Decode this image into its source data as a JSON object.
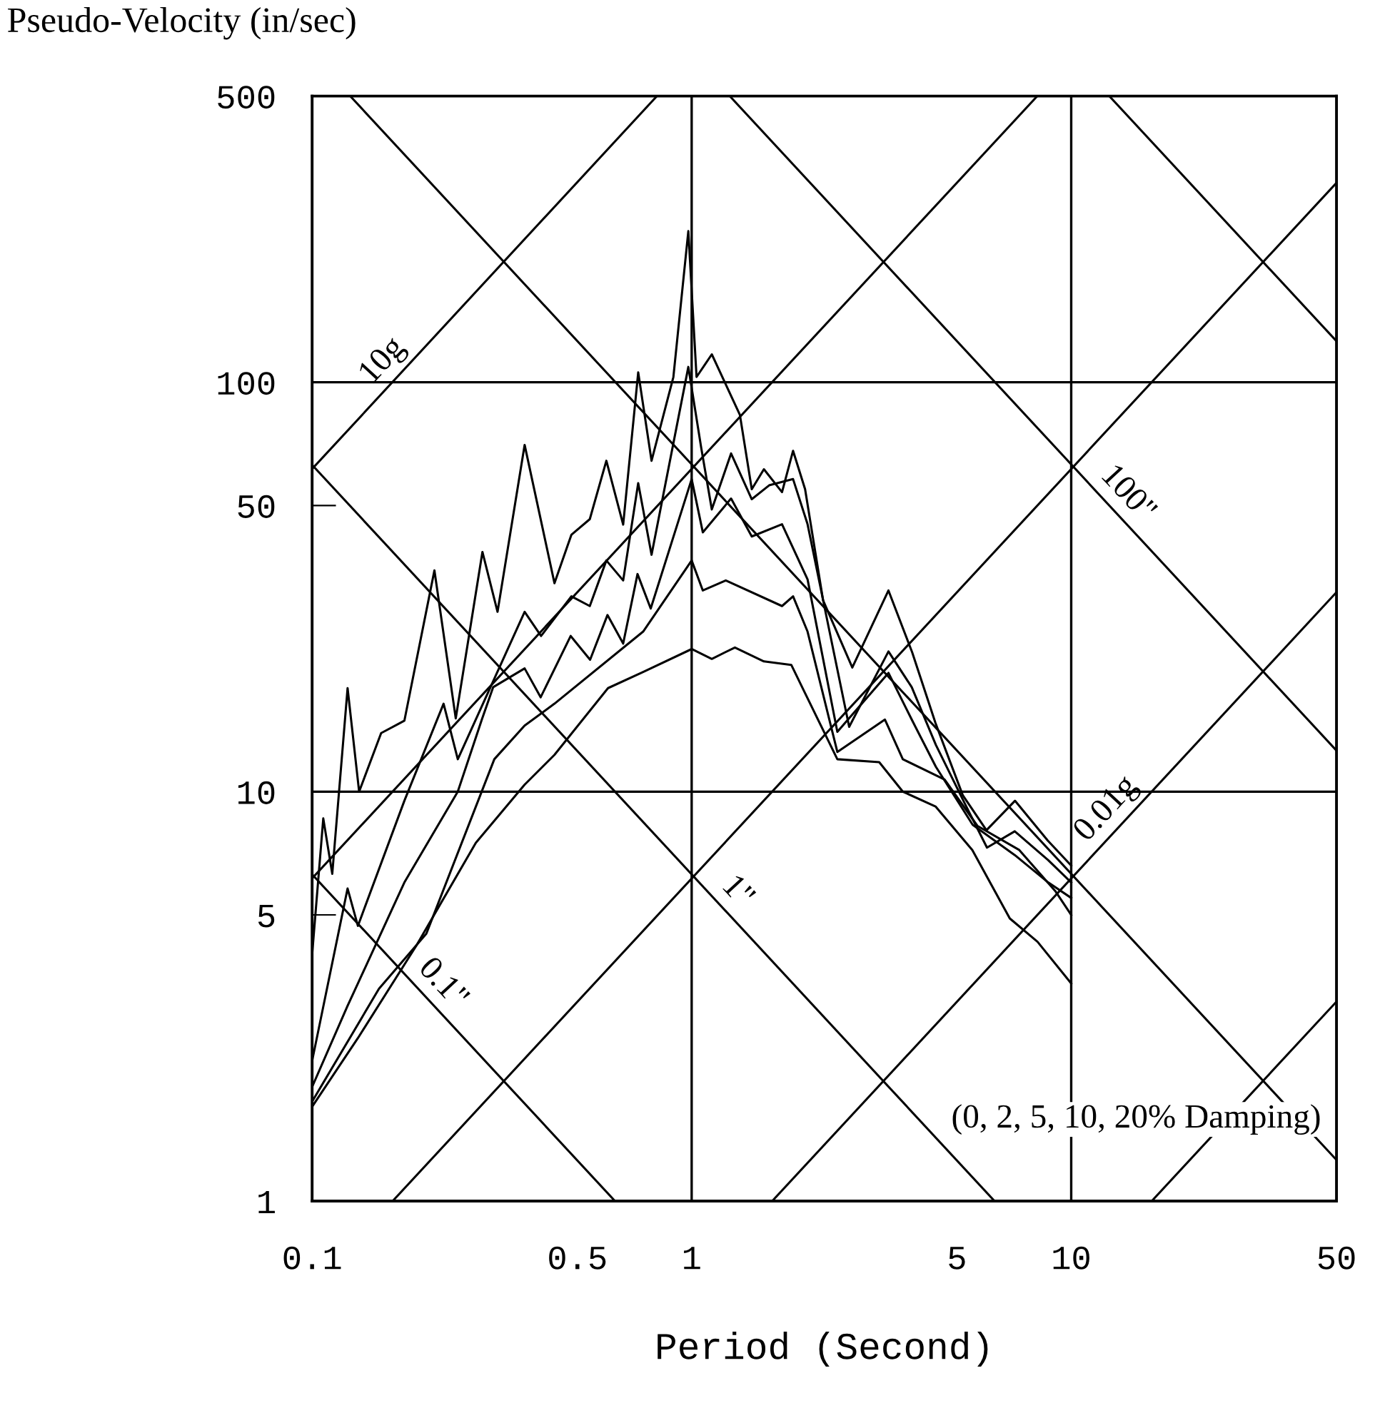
{
  "chart_data": {
    "type": "line",
    "xlabel": "Period (Second)",
    "ylabel": "Pseudo-Velocity (in/sec)",
    "log": "xy",
    "xlim": [
      0.1,
      50
    ],
    "ylim": [
      1,
      500
    ],
    "xticks": [
      0.1,
      0.5,
      1,
      5,
      10,
      50
    ],
    "yticks": [
      1,
      5,
      10,
      50,
      100,
      500
    ],
    "grid": false,
    "legend": false,
    "marker": "none",
    "line_style": "solid",
    "ref_lines": [
      {
        "axis": "x",
        "value": 1,
        "color": "#000000"
      },
      {
        "axis": "x",
        "value": 10,
        "color": "#000000"
      },
      {
        "axis": "y",
        "value": 10,
        "color": "#000000"
      },
      {
        "axis": "y",
        "value": 100,
        "color": "#000000"
      }
    ],
    "series": [
      {
        "color": "#000000",
        "x": [
          0.1,
          0.107,
          0.113,
          0.124,
          0.133,
          0.152,
          0.175,
          0.21,
          0.239,
          0.281,
          0.308,
          0.363,
          0.435,
          0.482,
          0.539,
          0.596,
          0.66,
          0.723,
          0.784,
          0.895,
          0.98,
          1.03,
          1.13,
          1.34,
          1.44,
          1.55,
          1.73,
          1.85,
          1.99,
          2.22,
          2.65,
          3.3,
          3.81,
          4.39,
          5.18,
          5.98,
          7.11,
          8.67,
          10
        ],
        "values": [
          4.0,
          8.6,
          6.3,
          17.9,
          10,
          13.9,
          14.9,
          34.7,
          15.1,
          38.5,
          27.5,
          70.3,
          32.3,
          42.4,
          46.3,
          64.3,
          44.9,
          105.7,
          64.3,
          103,
          234,
          103,
          117,
          83.2,
          54.8,
          61.3,
          53.9,
          68,
          54.8,
          29.3,
          20.1,
          31,
          21.9,
          14.7,
          9.8,
          8.05,
          9.5,
          7.6,
          6.6
        ]
      },
      {
        "color": "#000000",
        "x": [
          0.1,
          0.124,
          0.132,
          0.175,
          0.222,
          0.242,
          0.363,
          0.401,
          0.482,
          0.539,
          0.596,
          0.66,
          0.723,
          0.784,
          0.98,
          1.06,
          1.13,
          1.27,
          1.44,
          1.6,
          1.85,
          2.02,
          2.3,
          2.6,
          3.3,
          3.8,
          4.4,
          5.2,
          6,
          7.1,
          8.7,
          10
        ],
        "values": [
          2.2,
          5.8,
          4.7,
          9.5,
          16.4,
          12,
          27.5,
          24,
          30,
          28.4,
          36.7,
          32.8,
          56.7,
          37.9,
          109,
          69,
          48.9,
          67,
          51.8,
          56,
          58,
          45,
          25,
          14.4,
          22,
          18,
          13,
          9.5,
          7.3,
          8,
          6.8,
          6
        ]
      },
      {
        "color": "#000000",
        "x": [
          0.1,
          0.124,
          0.132,
          0.175,
          0.242,
          0.28,
          0.3,
          0.363,
          0.4,
          0.48,
          0.54,
          0.6,
          0.66,
          0.72,
          0.78,
          1,
          1.07,
          1.27,
          1.44,
          1.73,
          2.02,
          2.42,
          3.3,
          3.8,
          4.4,
          5.5,
          7.1,
          8.7,
          10
        ],
        "values": [
          1.9,
          3,
          3.4,
          6,
          10,
          15,
          18,
          20,
          17,
          24,
          21,
          27,
          23,
          34,
          28,
          58,
          43,
          52,
          42,
          45,
          33,
          14,
          19.5,
          15,
          11.5,
          8.3,
          7,
          6,
          5.5
        ]
      },
      {
        "color": "#000000",
        "x": [
          0.1,
          0.15,
          0.2,
          0.302,
          0.363,
          0.435,
          0.745,
          1,
          1.07,
          1.23,
          1.73,
          1.85,
          2.02,
          2.42,
          3.23,
          3.6,
          4.64,
          5.66,
          7.3,
          9.1,
          10
        ],
        "values": [
          1.75,
          3.3,
          4.5,
          12,
          14.5,
          16.4,
          24.6,
          36.7,
          31,
          32.8,
          28.4,
          30,
          24.6,
          12.5,
          15,
          12,
          10.7,
          8.25,
          7.2,
          5.7,
          5
        ]
      },
      {
        "color": "#000000",
        "x": [
          0.1,
          0.132,
          0.188,
          0.27,
          0.363,
          0.435,
          0.602,
          0.745,
          1,
          1.13,
          1.3,
          1.55,
          1.83,
          1.99,
          2.42,
          3.12,
          3.6,
          4.39,
          5.49,
          6.89,
          8.15,
          10
        ],
        "values": [
          1.7,
          2.5,
          4.2,
          7.5,
          10.4,
          12.3,
          17.9,
          19.6,
          22.3,
          21.1,
          22.5,
          20.8,
          20.4,
          17.4,
          12,
          11.8,
          10,
          9.2,
          7.2,
          4.9,
          4.3,
          3.4
        ]
      },
      {
        "name": "0.1\"",
        "color": "#000000",
        "x": [
          0.1,
          0.628
        ],
        "values": [
          6.28,
          1
        ]
      },
      {
        "name": "1\"",
        "color": "#000000",
        "x": [
          0.1,
          6.28
        ],
        "values": [
          62.8,
          1
        ]
      },
      {
        "color": "#000000",
        "x": [
          0.126,
          50
        ],
        "values": [
          500,
          1.26
        ]
      },
      {
        "name": "100\"",
        "color": "#000000",
        "x": [
          1.26,
          50
        ],
        "values": [
          500,
          12.6
        ]
      },
      {
        "color": "#000000",
        "x": [
          12.6,
          50
        ],
        "values": [
          500,
          126
        ]
      },
      {
        "name": "10g",
        "color": "#000000",
        "x": [
          0.1,
          0.81
        ],
        "values": [
          61.4,
          500
        ]
      },
      {
        "color": "#000000",
        "x": [
          0.1,
          8.14
        ],
        "values": [
          6.14,
          500
        ]
      },
      {
        "color": "#000000",
        "x": [
          0.163,
          50
        ],
        "values": [
          1,
          307
        ]
      },
      {
        "name": "0.01g",
        "color": "#000000",
        "x": [
          1.63,
          50
        ],
        "values": [
          1,
          30.7
        ]
      },
      {
        "color": "#000000",
        "x": [
          16.3,
          50
        ],
        "values": [
          1,
          3.07
        ]
      }
    ],
    "annotations": [
      "(0, 2, 5, 10, 20% Damping)"
    ]
  }
}
